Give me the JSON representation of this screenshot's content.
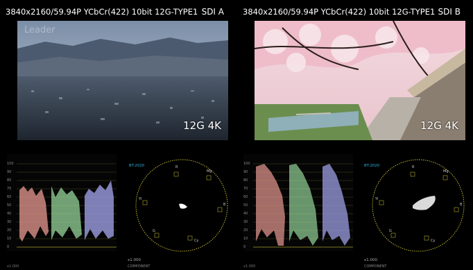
{
  "channels": [
    {
      "id": "a",
      "status_line": "3840x2160/59.94P YCbCr(422) 10bit 12G-TYPE1",
      "sdi_label": "SDI A",
      "badge": "12G 4K",
      "watermark": "Leader",
      "vectorscope": {
        "standard": "BT.2020",
        "gain": "x1.000",
        "mode": "COMPONENT"
      },
      "waveform_footer": "x1.000"
    },
    {
      "id": "b",
      "status_line": "3840x2160/59.94P YCbCr(422) 10bit 12G-TYPE1",
      "sdi_label": "SDI B",
      "badge": "12G 4K",
      "vectorscope": {
        "standard": "BT.2020",
        "gain": "x1.000",
        "mode": "COMPONENT"
      },
      "waveform_footer": "x1.000"
    }
  ],
  "waveform_scale": [
    "100",
    "90",
    "80",
    "70",
    "60",
    "50",
    "40",
    "30",
    "20",
    "10",
    "0"
  ],
  "vectorscope_targets": [
    "R",
    "Mg",
    "B",
    "Cy",
    "G",
    "Yl"
  ],
  "colors": {
    "graticule": "#d8cf38",
    "red_trace": "#e89a92",
    "green_trace": "#9fe3a4",
    "blue_trace": "#a6a8f2",
    "standard_label": "#2bb6e0"
  }
}
